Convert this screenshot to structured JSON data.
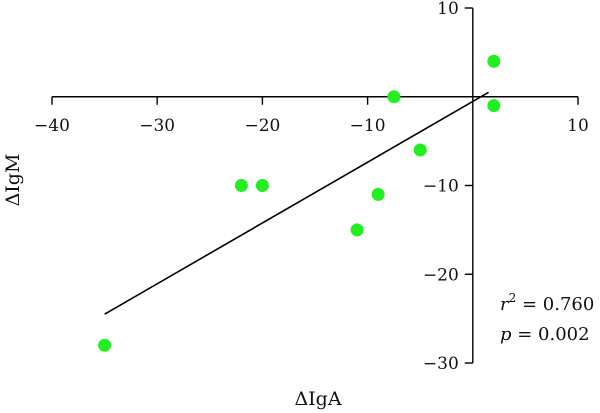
{
  "chart_data": {
    "type": "scatter",
    "title": "",
    "xlabel": "ΔIgA",
    "ylabel": "ΔIgM",
    "xlim": [
      -40,
      10
    ],
    "ylim": [
      -30,
      10
    ],
    "xticks": [
      -40,
      -30,
      -20,
      -10,
      10
    ],
    "yticks": [
      10,
      -10,
      -20,
      -30
    ],
    "x_tick_labels": [
      "−40",
      "−30",
      "−20",
      "−10",
      "10"
    ],
    "y_tick_labels": [
      "10",
      "−10",
      "−20",
      "−30"
    ],
    "grid": false,
    "legend": "none",
    "point_color": "#22ee22",
    "points": [
      {
        "x": -35,
        "y": -28
      },
      {
        "x": -22,
        "y": -10
      },
      {
        "x": -20,
        "y": -10
      },
      {
        "x": -11,
        "y": -15
      },
      {
        "x": -9,
        "y": -11
      },
      {
        "x": -7.5,
        "y": 0
      },
      {
        "x": -5,
        "y": -6
      },
      {
        "x": 2,
        "y": 4
      },
      {
        "x": 2,
        "y": -1
      }
    ],
    "regression_line": {
      "x": [
        -35,
        1.5
      ],
      "y": [
        -24.5,
        0.5
      ]
    },
    "annotations": {
      "r2_symbol": "r",
      "r2_exponent": "2",
      "r2_text": " = 0.760",
      "p_symbol": "p",
      "p_text": " = 0.002"
    }
  }
}
